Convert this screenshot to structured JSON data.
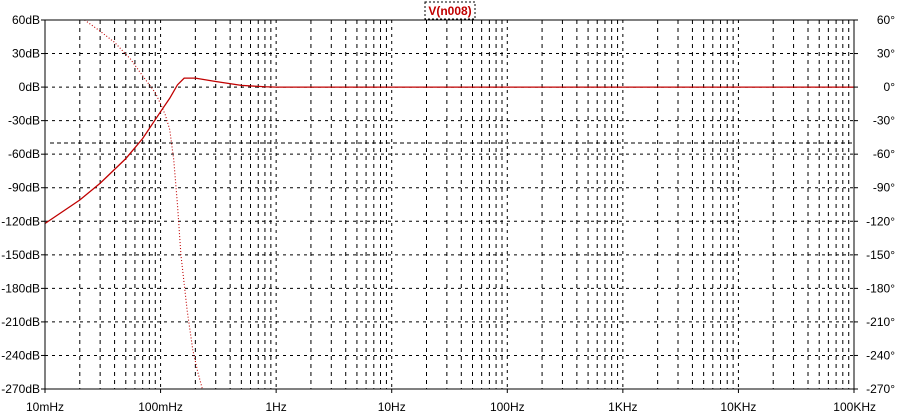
{
  "chart_data": {
    "type": "line",
    "title": "V(n008)",
    "x_scale": "log",
    "xlim_hz": [
      0.01,
      100000
    ],
    "x_ticks": [
      {
        "label": "10mHz",
        "value": 0.01
      },
      {
        "label": "100mHz",
        "value": 0.1
      },
      {
        "label": "1Hz",
        "value": 1
      },
      {
        "label": "10Hz",
        "value": 10
      },
      {
        "label": "100Hz",
        "value": 100
      },
      {
        "label": "1KHz",
        "value": 1000
      },
      {
        "label": "10KHz",
        "value": 10000
      },
      {
        "label": "100KHz",
        "value": 100000
      }
    ],
    "y_left": {
      "unit": "dB",
      "ylim": [
        -270,
        60
      ],
      "ticks": [
        {
          "label": "60dB",
          "value": 60
        },
        {
          "label": "30dB",
          "value": 30
        },
        {
          "label": "0dB",
          "value": 0
        },
        {
          "label": "-30dB",
          "value": -30
        },
        {
          "label": "-60dB",
          "value": -60
        },
        {
          "label": "-90dB",
          "value": -90
        },
        {
          "label": "-120dB",
          "value": -120
        },
        {
          "label": "-150dB",
          "value": -150
        },
        {
          "label": "-180dB",
          "value": -180
        },
        {
          "label": "-210dB",
          "value": -210
        },
        {
          "label": "-240dB",
          "value": -240
        },
        {
          "label": "-270dB",
          "value": -270
        }
      ]
    },
    "y_right": {
      "unit": "deg",
      "ylim": [
        -270,
        60
      ],
      "ticks": [
        {
          "label": "60°",
          "value": 60
        },
        {
          "label": "30°",
          "value": 30
        },
        {
          "label": "0°",
          "value": 0
        },
        {
          "label": "-30°",
          "value": -30
        },
        {
          "label": "-60°",
          "value": -60
        },
        {
          "label": "-90°",
          "value": -90
        },
        {
          "label": "-120°",
          "value": -120
        },
        {
          "label": "-150°",
          "value": -150
        },
        {
          "label": "-180°",
          "value": -180
        },
        {
          "label": "-210°",
          "value": -210
        },
        {
          "label": "-240°",
          "value": -240
        },
        {
          "label": "-270°",
          "value": -270
        }
      ]
    },
    "reference_line_db": -50,
    "grid": true,
    "series": [
      {
        "name": "V(n008)",
        "kind": "magnitude",
        "axis": "left",
        "style": "solid",
        "color": "#c00000",
        "points": [
          [
            0.01,
            -122
          ],
          [
            0.02,
            -101
          ],
          [
            0.03,
            -86
          ],
          [
            0.05,
            -64
          ],
          [
            0.07,
            -46
          ],
          [
            0.1,
            -22
          ],
          [
            0.12,
            -10
          ],
          [
            0.14,
            2
          ],
          [
            0.16,
            8
          ],
          [
            0.2,
            8
          ],
          [
            0.3,
            5
          ],
          [
            0.5,
            1.5
          ],
          [
            0.8,
            0.3
          ],
          [
            1,
            0
          ],
          [
            10,
            0
          ],
          [
            100,
            0
          ],
          [
            1000,
            0
          ],
          [
            10000,
            0
          ],
          [
            100000,
            0
          ]
        ]
      },
      {
        "name": "V(n008) phase",
        "kind": "phase",
        "axis": "right",
        "style": "dotted",
        "color": "#c00000",
        "points": [
          [
            0.022,
            60
          ],
          [
            0.03,
            50
          ],
          [
            0.04,
            40
          ],
          [
            0.055,
            25
          ],
          [
            0.07,
            10
          ],
          [
            0.09,
            -5
          ],
          [
            0.1,
            -15
          ],
          [
            0.11,
            -25
          ],
          [
            0.12,
            -38
          ],
          [
            0.13,
            -65
          ],
          [
            0.14,
            -105
          ],
          [
            0.15,
            -150
          ],
          [
            0.17,
            -200
          ],
          [
            0.19,
            -235
          ],
          [
            0.21,
            -255
          ],
          [
            0.23,
            -270
          ]
        ]
      }
    ],
    "colors": {
      "trace": "#c00000",
      "grid": "#000000",
      "axis": "#000000"
    }
  }
}
